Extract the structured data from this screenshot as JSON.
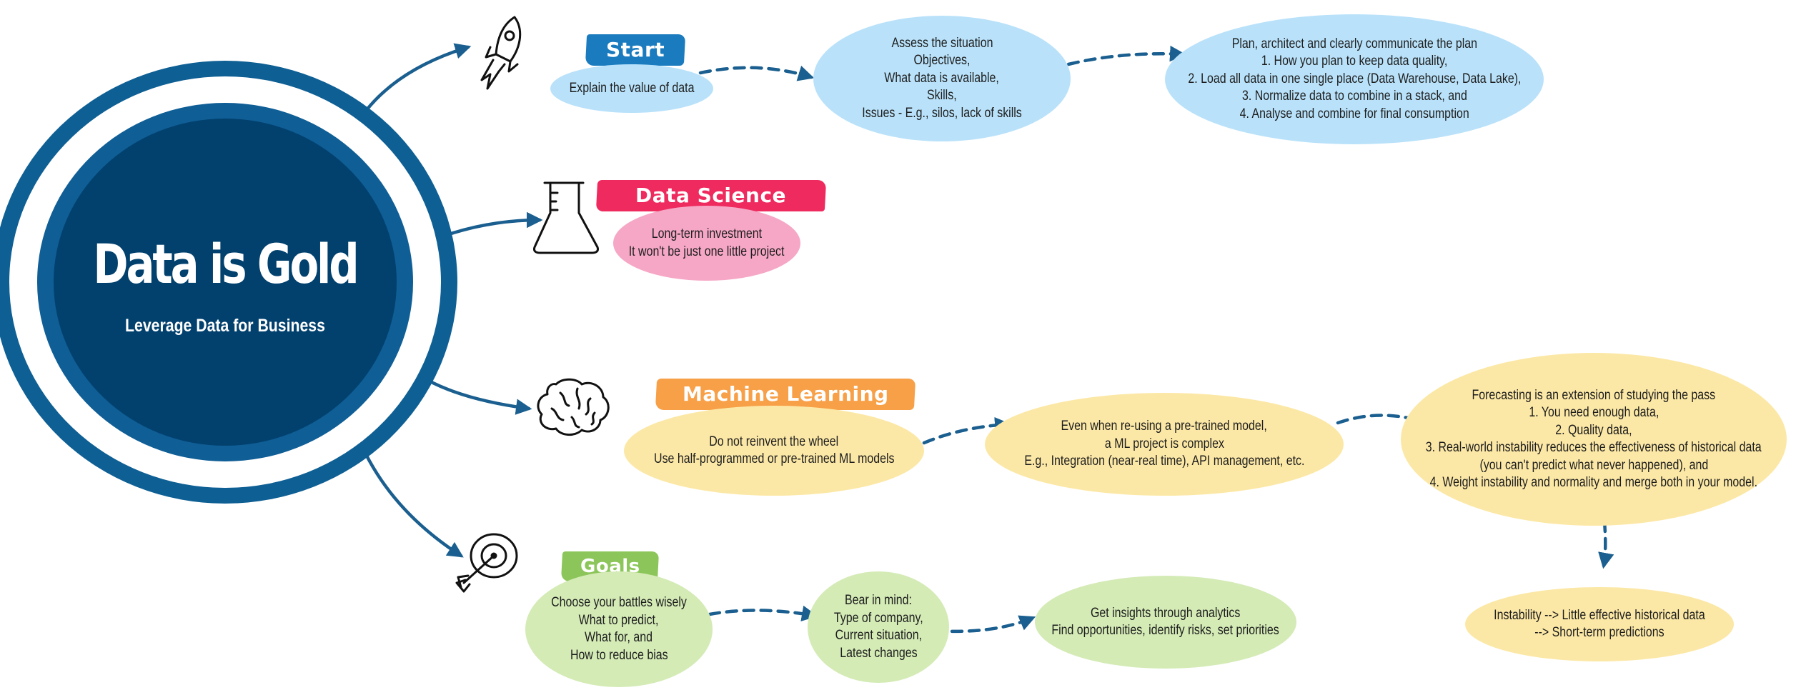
{
  "hub": {
    "title": "Data is Gold",
    "subtitle": "Leverage Data for Business"
  },
  "branches": {
    "start": {
      "label": "Start",
      "color": "#1a7bbf",
      "steps": [
        [
          "Explain the value of data"
        ],
        [
          "Assess the situation",
          "Objectives,",
          "What data is available,",
          "Skills,",
          "Issues - E.g., silos, lack of skills"
        ],
        [
          "Plan, architect and clearly communicate the plan",
          "1. How you plan to keep data quality,",
          "2. Load all data in one single place (Data Warehouse, Data Lake),",
          "3. Normalize data to combine in a stack, and",
          "4. Analyse and combine for final consumption"
        ]
      ]
    },
    "data_science": {
      "label": "Data Science",
      "color": "#ee2a5e",
      "steps": [
        [
          "Long-term investment",
          "It won't be just one little project"
        ]
      ]
    },
    "machine_learning": {
      "label": "Machine Learning",
      "color": "#f7a048",
      "steps": [
        [
          "Do not reinvent the wheel",
          "Use half-programmed or pre-trained ML models"
        ],
        [
          "Even when re-using a pre-trained model,",
          "a ML project is complex",
          "E.g., Integration (near-real time), API management, etc."
        ],
        [
          "Forecasting is an extension of studying the pass",
          "1. You need enough data,",
          "2. Quality data,",
          "3. Real-world instability reduces the effectiveness of historical data",
          "(you can't predict what never happened), and",
          "4. Weight instability and normality and merge both in your model."
        ],
        [
          "Instability --> Little effective historical data",
          "--> Short-term predictions"
        ]
      ]
    },
    "goals": {
      "label": "Goals",
      "color": "#8cc65a",
      "steps": [
        [
          "Choose your battles wisely",
          "What to predict,",
          "What for, and",
          "How to reduce bias"
        ],
        [
          "Bear in mind:",
          "Type of company,",
          "Current situation,",
          "Latest changes"
        ],
        [
          "Get insights through analytics",
          "Find opportunities, identify risks, set priorities"
        ]
      ]
    }
  },
  "icons": {
    "start": "rocket-icon",
    "data_science": "flask-icon",
    "machine_learning": "brain-icon",
    "goals": "target-icon"
  },
  "colors": {
    "hub": "#02416e",
    "ring": "#0f5e96",
    "arrow": "#1a5f8f"
  }
}
